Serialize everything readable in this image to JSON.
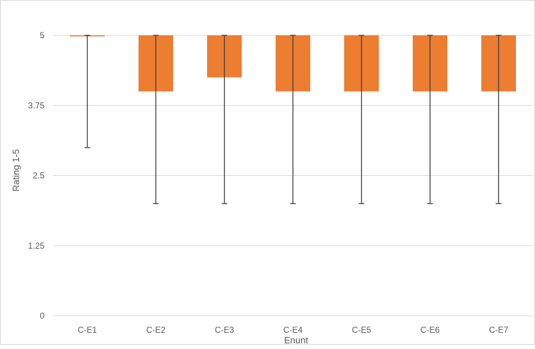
{
  "chart_data": {
    "type": "bar",
    "categories": [
      "C-E1",
      "C-E2",
      "C-E3",
      "C-E4",
      "C-E5",
      "C-E6",
      "C-E7"
    ],
    "series": [
      {
        "values": [
          5,
          4,
          4.25,
          4,
          4,
          4,
          4
        ],
        "color": "#ED7D31"
      }
    ],
    "bar_base": 5,
    "error_bars": [
      {
        "low": 3,
        "high": 5
      },
      {
        "low": 2,
        "high": 5
      },
      {
        "low": 2,
        "high": 5
      },
      {
        "low": 2,
        "high": 5
      },
      {
        "low": 2,
        "high": 5
      },
      {
        "low": 2,
        "high": 5
      },
      {
        "low": 2,
        "high": 5
      }
    ],
    "xlabel": "Enunt",
    "ylabel": "Rating 1-5",
    "ylim": [
      0,
      5
    ],
    "yticks": [
      "0",
      "1.25",
      "2.5",
      "3.75",
      "5"
    ],
    "grid": true,
    "legend": "none",
    "colors": {
      "bar": "#ED7D31",
      "gridline": "#D9D9D9",
      "error_bar": "#404040",
      "text": "#595959"
    }
  }
}
